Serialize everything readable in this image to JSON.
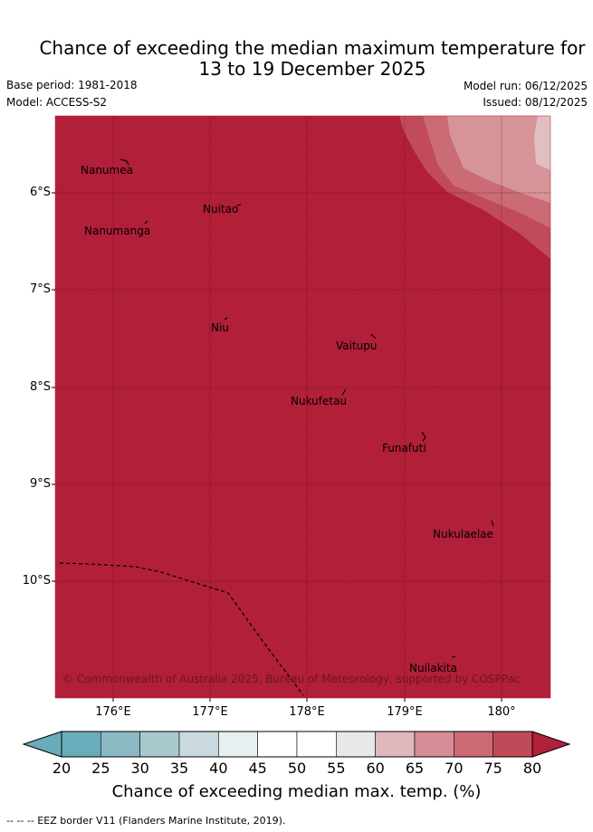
{
  "header": {
    "title_line1": "Chance of exceeding the median maximum temperature for",
    "title_line2": "13 to 19 December 2025",
    "base_period": "Base period: 1981-2018",
    "model": "Model: ACCESS-S2",
    "model_run": "Model run: 06/12/2025",
    "issued": "Issued: 08/12/2025"
  },
  "map": {
    "background_category": "80+",
    "colors": {
      "ocean": "#b11f38",
      "band_75": "#c14b5b",
      "band_70": "#cb6b75",
      "band_65": "#d69499",
      "band_60": "#e0bfc3",
      "grid": "#5a0f1c"
    },
    "latitude_labels": [
      "6°S",
      "7°S",
      "8°S",
      "9°S",
      "10°S"
    ],
    "longitude_labels": [
      "176°E",
      "177°E",
      "178°E",
      "179°E",
      "180°"
    ],
    "places": [
      {
        "name": "Nanumea"
      },
      {
        "name": "Nuitao"
      },
      {
        "name": "Nanumanga"
      },
      {
        "name": "Niu"
      },
      {
        "name": "Vaitupu"
      },
      {
        "name": "Nukufetau"
      },
      {
        "name": "Funafuti"
      },
      {
        "name": "Nukulaelae"
      },
      {
        "name": "Nuilakita"
      }
    ],
    "copyright": "© Commonwealth of Australia 2025, Bureau of Meteorology, supported by COSPPac"
  },
  "colorbar": {
    "ticks": [
      "20",
      "25",
      "30",
      "35",
      "40",
      "45",
      "50",
      "55",
      "60",
      "65",
      "70",
      "75",
      "80"
    ],
    "segment_colors": [
      "#68adb9",
      "#8ab9c4",
      "#a9c8cd",
      "#c9d9dd",
      "#e8eff1",
      "#ffffff",
      "#ffffff",
      "#e8e8e8",
      "#dfb7bd",
      "#d68d95",
      "#cb6a74",
      "#c14a59"
    ],
    "under_color": "#68adb9",
    "over_color": "#b11f38",
    "label": "Chance of exceeding median max. temp. (%)"
  },
  "footnote": "--  --  -- EEZ border V11 (Flanders Marine Institute, 2019)."
}
